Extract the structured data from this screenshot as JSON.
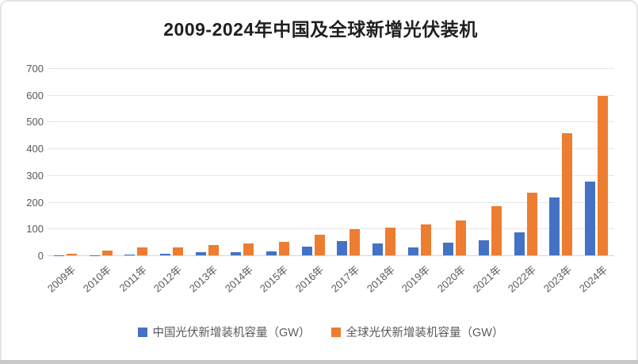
{
  "card": {
    "title": "2009-2024年中国及全球新增光伏装机"
  },
  "chart_data": {
    "type": "bar",
    "title": "2009-2024年中国及全球新增光伏装机",
    "categories": [
      "2009年",
      "2010年",
      "2011年",
      "2012年",
      "2013年",
      "2014年",
      "2015年",
      "2016年",
      "2017年",
      "2018年",
      "2019年",
      "2020年",
      "2021年",
      "2022年",
      "2023年",
      "2024年"
    ],
    "series": [
      {
        "name": "中国光伏新增装机容量（GW）",
        "color": "#4472C4",
        "values": [
          0.2,
          0.5,
          2.5,
          4.5,
          11,
          10.5,
          15,
          34,
          53,
          44,
          30,
          48,
          55,
          87,
          217,
          277
        ]
      },
      {
        "name": "全球光伏新增装机容量（GW）",
        "color": "#ED7D31",
        "values": [
          7,
          17,
          30,
          30,
          38,
          45,
          51,
          76,
          99,
          105,
          117,
          132,
          185,
          235,
          458,
          595
        ]
      }
    ],
    "xlabel": "",
    "ylabel": "",
    "ylim": [
      0,
      700
    ],
    "yticks": [
      0,
      100,
      200,
      300,
      400,
      500,
      600,
      700
    ],
    "grid": "horizontal",
    "legend_position": "bottom",
    "colors": {
      "china_blue": "#4472C4",
      "global_orange": "#ED7D31",
      "gridline": "#e6e6e6",
      "axis_text": "#595959",
      "title_text": "#1f1f1f"
    }
  }
}
